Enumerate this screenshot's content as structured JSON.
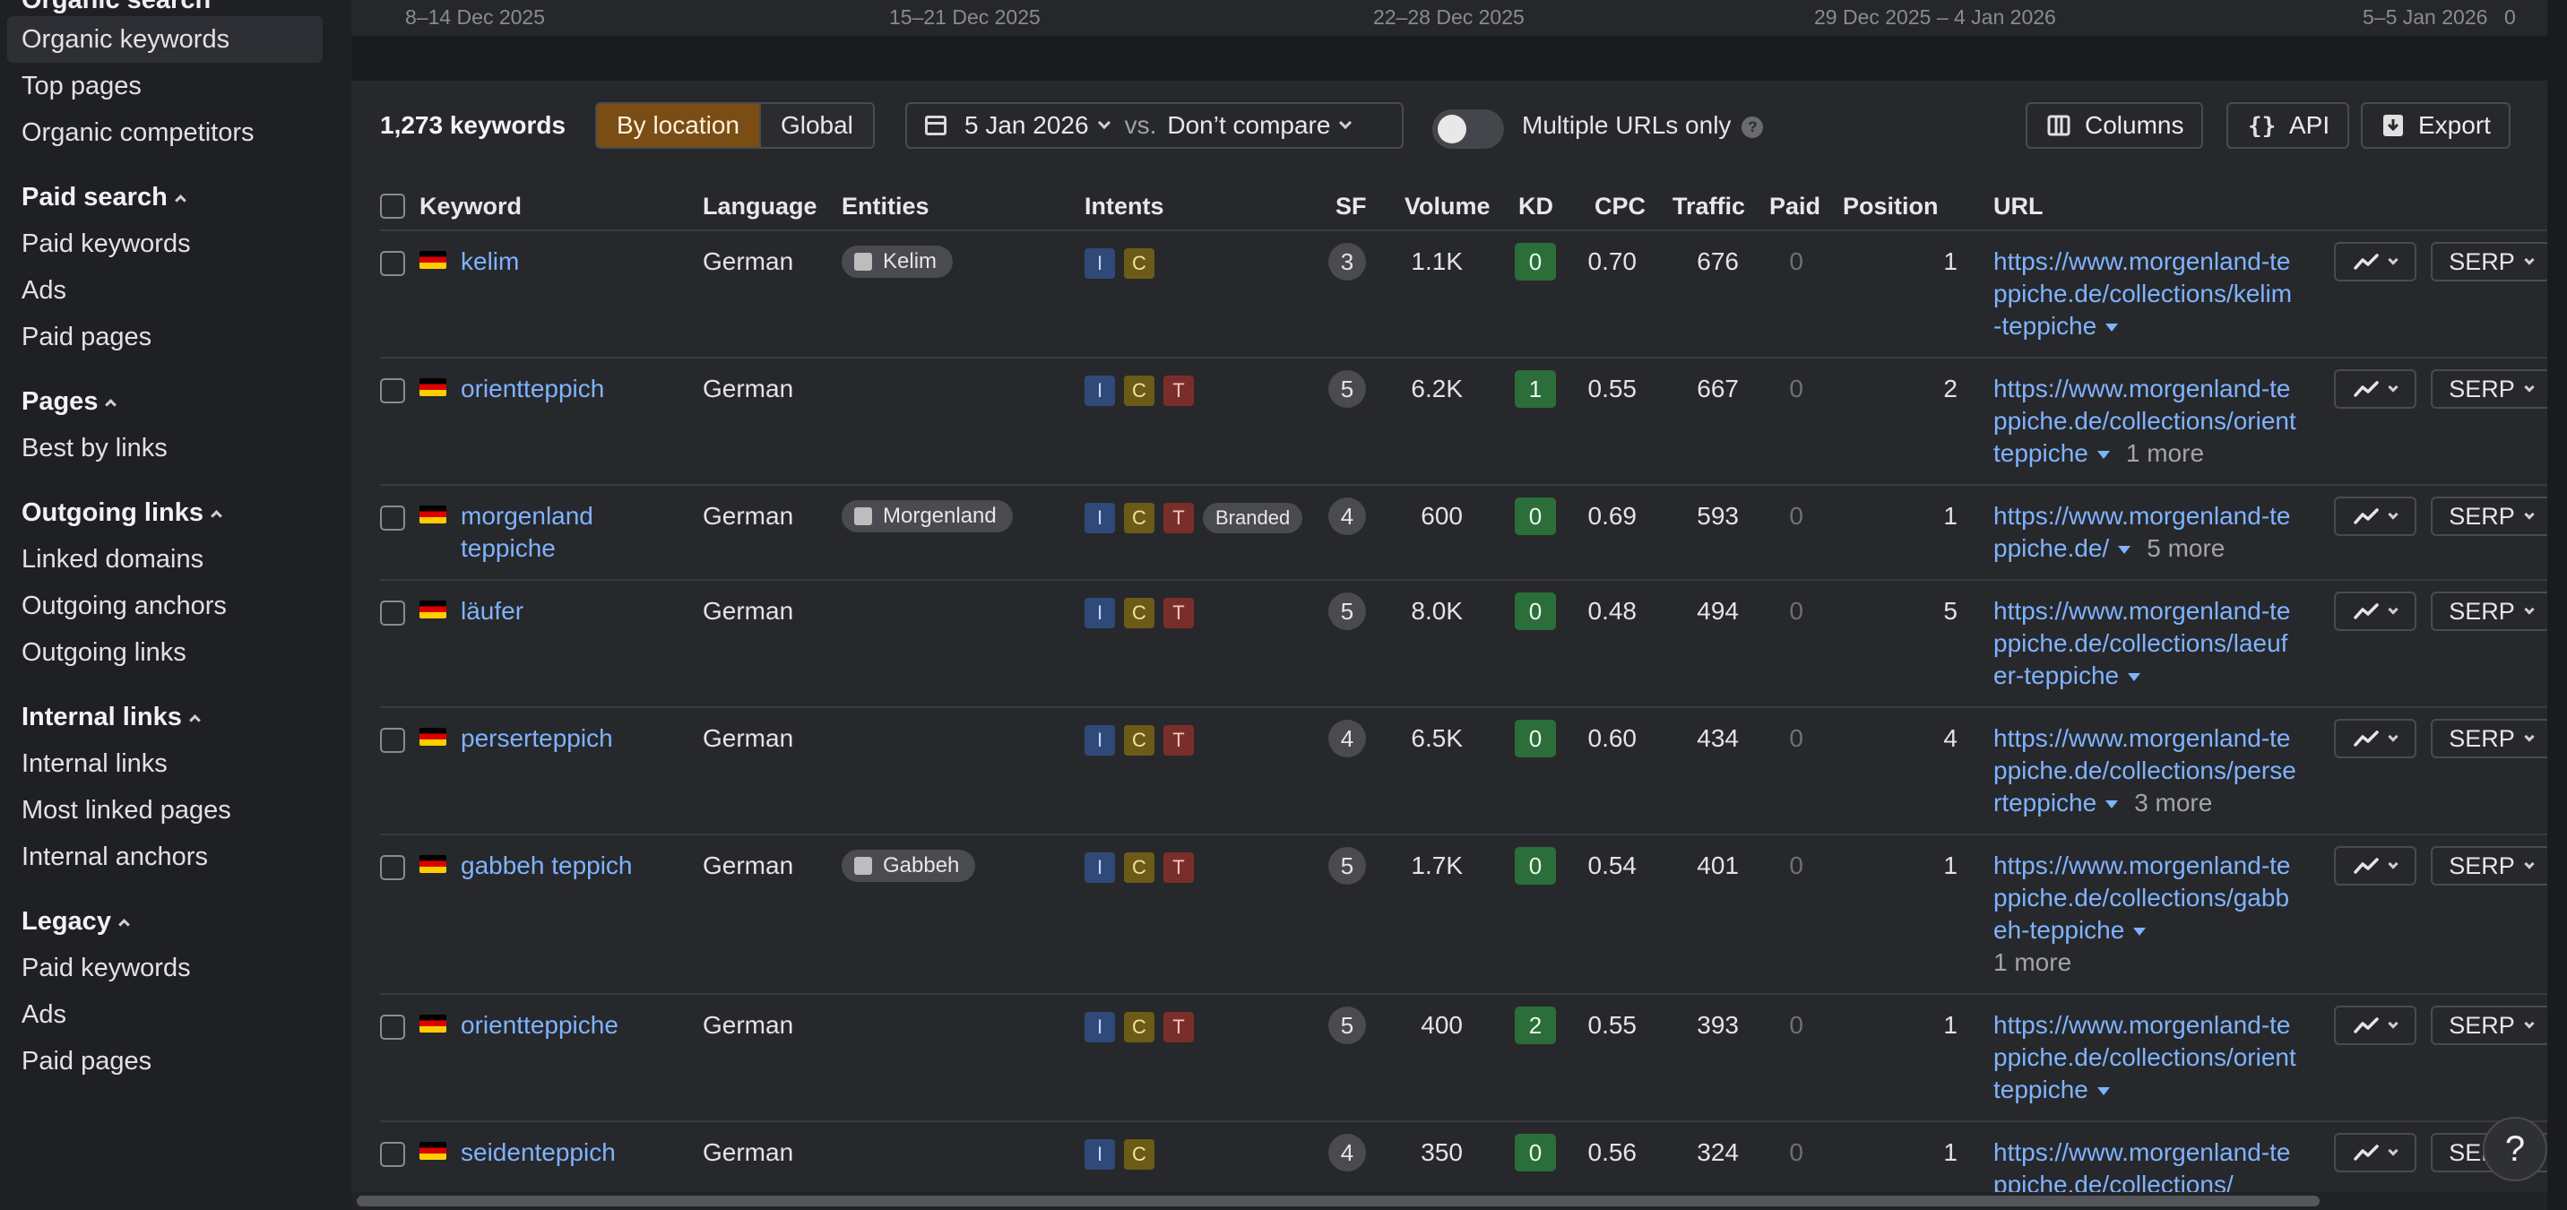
{
  "sidebar": {
    "cut_heading": "Organic search",
    "top_items": [
      "Organic keywords",
      "Top pages",
      "Organic competitors"
    ],
    "sections": [
      {
        "title": "Paid search",
        "items": [
          "Paid keywords",
          "Ads",
          "Paid pages"
        ]
      },
      {
        "title": "Pages",
        "items": [
          "Best by links"
        ]
      },
      {
        "title": "Outgoing links",
        "items": [
          "Linked domains",
          "Outgoing anchors",
          "Outgoing links"
        ]
      },
      {
        "title": "Internal links",
        "items": [
          "Internal links",
          "Most linked pages",
          "Internal anchors"
        ]
      },
      {
        "title": "Legacy",
        "items": [
          "Paid keywords",
          "Ads",
          "Paid pages"
        ]
      }
    ]
  },
  "timeline": {
    "labels": [
      "8–14 Dec 2025",
      "15–21 Dec 2025",
      "22–28 Dec 2025",
      "29 Dec 2025 – 4 Jan 2026",
      "5–5 Jan 2026"
    ],
    "end_value": "0"
  },
  "toolbar": {
    "keyword_count": "1,273 keywords",
    "by_location": "By location",
    "global": "Global",
    "date": "5 Jan 2026",
    "vs": "vs.",
    "compare": "Don’t compare",
    "multiple_urls": "Multiple URLs only",
    "help": "?",
    "columns": "Columns",
    "api": "API",
    "export": "Export"
  },
  "table": {
    "headers": {
      "keyword": "Keyword",
      "language": "Language",
      "entities": "Entities",
      "intents": "Intents",
      "sf": "SF",
      "volume": "Volume",
      "kd": "KD",
      "cpc": "CPC",
      "traffic": "Traffic",
      "paid": "Paid",
      "position": "Position",
      "url": "URL"
    },
    "serp_label": "SERP",
    "rows": [
      {
        "keyword": "kelim",
        "language": "German",
        "entity": "Kelim",
        "intents": [
          "I",
          "C"
        ],
        "sf": "3",
        "volume": "1.1K",
        "kd": "0",
        "cpc": "0.70",
        "traffic": "676",
        "paid": "0",
        "position": "1",
        "url": "https://www.morgenland-teppiche.de/collections/kelim-teppiche",
        "more": ""
      },
      {
        "keyword": "orientteppich",
        "language": "German",
        "entity": "",
        "intents": [
          "I",
          "C",
          "T"
        ],
        "sf": "5",
        "volume": "6.2K",
        "kd": "1",
        "cpc": "0.55",
        "traffic": "667",
        "paid": "0",
        "position": "2",
        "url": "https://www.morgenland-teppiche.de/collections/orientteppiche",
        "more": "1 more"
      },
      {
        "keyword": "morgenland teppiche",
        "language": "German",
        "entity": "Morgenland",
        "intents": [
          "I",
          "C",
          "T",
          "Branded"
        ],
        "sf": "4",
        "volume": "600",
        "kd": "0",
        "cpc": "0.69",
        "traffic": "593",
        "paid": "0",
        "position": "1",
        "url": "https://www.morgenland-teppiche.de/",
        "more": "5 more"
      },
      {
        "keyword": "läufer",
        "language": "German",
        "entity": "",
        "intents": [
          "I",
          "C",
          "T"
        ],
        "sf": "5",
        "volume": "8.0K",
        "kd": "0",
        "cpc": "0.48",
        "traffic": "494",
        "paid": "0",
        "position": "5",
        "url": "https://www.morgenland-teppiche.de/collections/laeufer-teppiche",
        "more": ""
      },
      {
        "keyword": "perserteppich",
        "language": "German",
        "entity": "",
        "intents": [
          "I",
          "C",
          "T"
        ],
        "sf": "4",
        "volume": "6.5K",
        "kd": "0",
        "cpc": "0.60",
        "traffic": "434",
        "paid": "0",
        "position": "4",
        "url": "https://www.morgenland-teppiche.de/collections/perserteppiche",
        "more": "3 more"
      },
      {
        "keyword": "gabbeh teppich",
        "language": "German",
        "entity": "Gabbeh",
        "intents": [
          "I",
          "C",
          "T"
        ],
        "sf": "5",
        "volume": "1.7K",
        "kd": "0",
        "cpc": "0.54",
        "traffic": "401",
        "paid": "0",
        "position": "1",
        "url": "https://www.morgenland-teppiche.de/collections/gabbeh-teppiche",
        "more": "1 more"
      },
      {
        "keyword": "orientteppiche",
        "language": "German",
        "entity": "",
        "intents": [
          "I",
          "C",
          "T"
        ],
        "sf": "5",
        "volume": "400",
        "kd": "2",
        "cpc": "0.55",
        "traffic": "393",
        "paid": "0",
        "position": "1",
        "url": "https://www.morgenland-teppiche.de/collections/orientteppiche",
        "more": ""
      },
      {
        "keyword": "seidenteppich",
        "language": "German",
        "entity": "",
        "intents": [
          "I",
          "C"
        ],
        "sf": "4",
        "volume": "350",
        "kd": "0",
        "cpc": "0.56",
        "traffic": "324",
        "paid": "0",
        "position": "1",
        "url": "https://www.morgenland-teppiche.de/collections/",
        "more": ""
      }
    ]
  },
  "help_fab": "?"
}
